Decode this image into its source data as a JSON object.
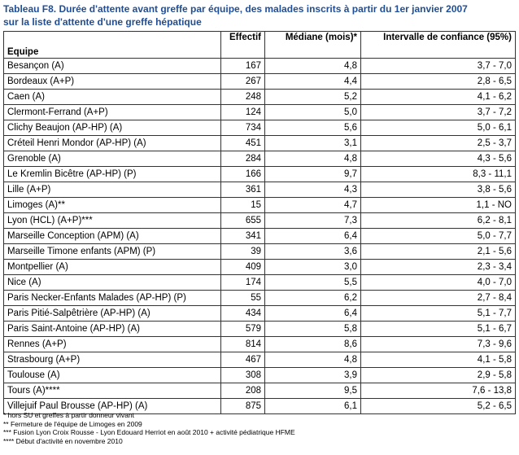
{
  "title_lines": [
    "Tableau F8. Durée d'attente avant greffe par équipe, des malades inscrits à partir du 1er janvier 2007",
    "sur la liste d'attente d'une greffe hépatique"
  ],
  "headers": {
    "equipe": "Equipe",
    "effectif": "Effectif",
    "mediane": "Médiane (mois)*",
    "intervalle": "Intervalle de confiance (95%)"
  },
  "rows": [
    {
      "equipe": "Besançon (A)",
      "effectif": "167",
      "mediane": "4,8",
      "ic": "3,7 - 7,0"
    },
    {
      "equipe": "Bordeaux (A+P)",
      "effectif": "267",
      "mediane": "4,4",
      "ic": "2,8 - 6,5"
    },
    {
      "equipe": "Caen (A)",
      "effectif": "248",
      "mediane": "5,2",
      "ic": "4,1 - 6,2"
    },
    {
      "equipe": "Clermont-Ferrand (A+P)",
      "effectif": "124",
      "mediane": "5,0",
      "ic": "3,7 - 7,2"
    },
    {
      "equipe": "Clichy Beaujon (AP-HP) (A)",
      "effectif": "734",
      "mediane": "5,6",
      "ic": "5,0 - 6,1"
    },
    {
      "equipe": "Créteil Henri Mondor (AP-HP) (A)",
      "effectif": "451",
      "mediane": "3,1",
      "ic": "2,5 - 3,7"
    },
    {
      "equipe": "Grenoble (A)",
      "effectif": "284",
      "mediane": "4,8",
      "ic": "4,3 - 5,6"
    },
    {
      "equipe": "Le Kremlin Bicêtre (AP-HP) (P)",
      "effectif": "166",
      "mediane": "9,7",
      "ic": "8,3 - 11,1"
    },
    {
      "equipe": "Lille (A+P)",
      "effectif": "361",
      "mediane": "4,3",
      "ic": "3,8 - 5,6"
    },
    {
      "equipe": "Limoges (A)**",
      "effectif": "15",
      "mediane": "4,7",
      "ic": "1,1 - NO"
    },
    {
      "equipe": "Lyon (HCL) (A+P)***",
      "effectif": "655",
      "mediane": "7,3",
      "ic": "6,2 - 8,1"
    },
    {
      "equipe": "Marseille Conception (APM) (A)",
      "effectif": "341",
      "mediane": "6,4",
      "ic": "5,0 - 7,7"
    },
    {
      "equipe": "Marseille Timone enfants (APM) (P)",
      "effectif": "39",
      "mediane": "3,6",
      "ic": "2,1 - 5,6"
    },
    {
      "equipe": "Montpellier (A)",
      "effectif": "409",
      "mediane": "3,0",
      "ic": "2,3 - 3,4"
    },
    {
      "equipe": "Nice (A)",
      "effectif": "174",
      "mediane": "5,5",
      "ic": "4,0 - 7,0"
    },
    {
      "equipe": "Paris Necker-Enfants Malades (AP-HP) (P)",
      "effectif": "55",
      "mediane": "6,2",
      "ic": "2,7 - 8,4"
    },
    {
      "equipe": "Paris Pitié-Salpêtrière (AP-HP) (A)",
      "effectif": "434",
      "mediane": "6,4",
      "ic": "5,1 - 7,7"
    },
    {
      "equipe": "Paris Saint-Antoine (AP-HP) (A)",
      "effectif": "579",
      "mediane": "5,8",
      "ic": "5,1 - 6,7"
    },
    {
      "equipe": "Rennes (A+P)",
      "effectif": "814",
      "mediane": "8,6",
      "ic": "7,3 - 9,6"
    },
    {
      "equipe": "Strasbourg (A+P)",
      "effectif": "467",
      "mediane": "4,8",
      "ic": "4,1 - 5,8"
    },
    {
      "equipe": "Toulouse (A)",
      "effectif": "308",
      "mediane": "3,9",
      "ic": "2,9 - 5,8"
    },
    {
      "equipe": "Tours (A)****",
      "effectif": "208",
      "mediane": "9,5",
      "ic": "7,6 - 13,8"
    },
    {
      "equipe": "Villejuif Paul Brousse (AP-HP) (A)",
      "effectif": "875",
      "mediane": "6,1",
      "ic": "5,2 - 6,5"
    }
  ],
  "footnotes": [
    "* hors SU et greffes à partir donneur vivant",
    "** Fermeture de l'équipe de Limoges en 2009",
    "*** Fusion Lyon Croix Rousse - Lyon Edouard Herriot en août 2010 + activité pédiatrique HFME",
    "**** Début d'activité en novembre 2010"
  ]
}
